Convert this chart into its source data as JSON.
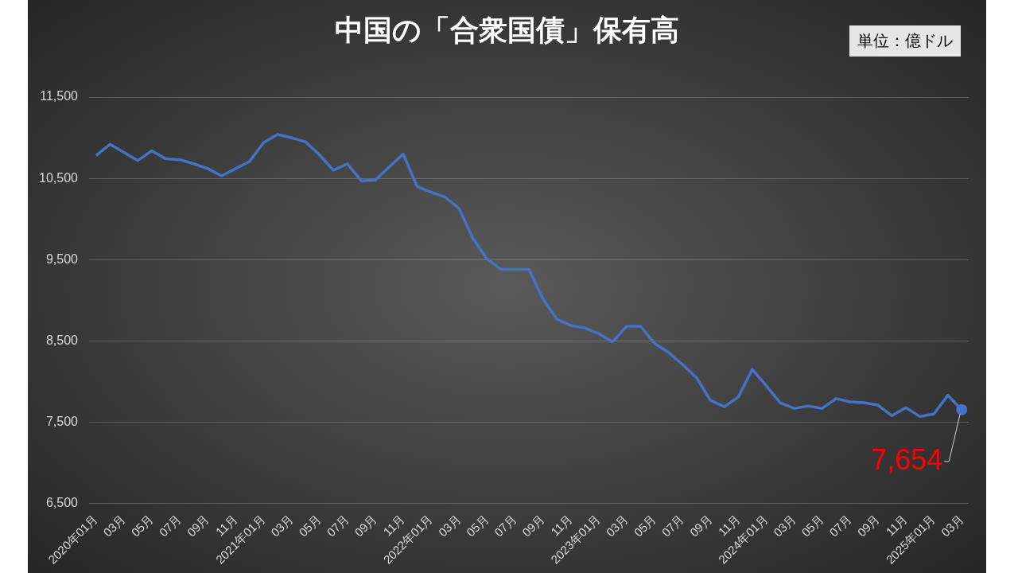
{
  "chart_data": {
    "type": "line",
    "title": "中国の「合衆国債」保有高",
    "annotations": [
      "単位：億ドル"
    ],
    "categories": [
      "2020年01月",
      null,
      "03月",
      null,
      "05月",
      null,
      "07月",
      null,
      "09月",
      null,
      "11月",
      null,
      "2021年01月",
      null,
      "03月",
      null,
      "05月",
      null,
      "07月",
      null,
      "09月",
      null,
      "11月",
      null,
      "2022年01月",
      null,
      "03月",
      null,
      "05月",
      null,
      "07月",
      null,
      "09月",
      null,
      "11月",
      null,
      "2023年01月",
      null,
      "03月",
      null,
      "05月",
      null,
      "07月",
      null,
      "09月",
      null,
      "11月",
      null,
      "2024年01月",
      null,
      "03月",
      null,
      "05月",
      null,
      "07月",
      null,
      "09月",
      null,
      "11月",
      null,
      "2025年01月",
      null,
      "03月"
    ],
    "series": [
      {
        "color": "#4472c4",
        "values": [
          10780,
          10920,
          10820,
          10720,
          10840,
          10740,
          10730,
          10680,
          10620,
          10530,
          10620,
          10710,
          10940,
          11040,
          11000,
          10950,
          10790,
          10600,
          10680,
          10470,
          10480,
          10640,
          10800,
          10400,
          10330,
          10270,
          10130,
          9760,
          9510,
          9380,
          9380,
          9380,
          9020,
          8770,
          8690,
          8660,
          8590,
          8490,
          8680,
          8680,
          8470,
          8360,
          8210,
          8050,
          7770,
          7690,
          7810,
          8150,
          7950,
          7740,
          7670,
          7700,
          7670,
          7790,
          7750,
          7740,
          7710,
          7580,
          7680,
          7570,
          7600,
          7830,
          7654
        ],
        "value_labels": [
          null,
          null,
          null,
          null,
          null,
          null,
          null,
          null,
          null,
          null,
          null,
          null,
          null,
          null,
          null,
          null,
          null,
          null,
          null,
          null,
          null,
          null,
          null,
          null,
          null,
          null,
          null,
          null,
          null,
          null,
          null,
          null,
          null,
          null,
          null,
          null,
          null,
          null,
          null,
          null,
          null,
          null,
          null,
          null,
          null,
          null,
          null,
          null,
          null,
          null,
          null,
          null,
          null,
          null,
          null,
          null,
          null,
          null,
          null,
          null,
          null,
          null,
          "7,654"
        ]
      }
    ],
    "ylim": [
      6500,
      11500
    ],
    "yticks": [
      {
        "value": 6500,
        "label": "6,500"
      },
      {
        "value": 7500,
        "label": "7,500"
      },
      {
        "value": 8500,
        "label": "8,500"
      },
      {
        "value": 9500,
        "label": "9,500"
      },
      {
        "value": 10500,
        "label": "10,500"
      },
      {
        "value": 11500,
        "label": "11,500"
      }
    ],
    "grid": "y",
    "legend": false,
    "marker": "none",
    "line_style": "solid"
  }
}
